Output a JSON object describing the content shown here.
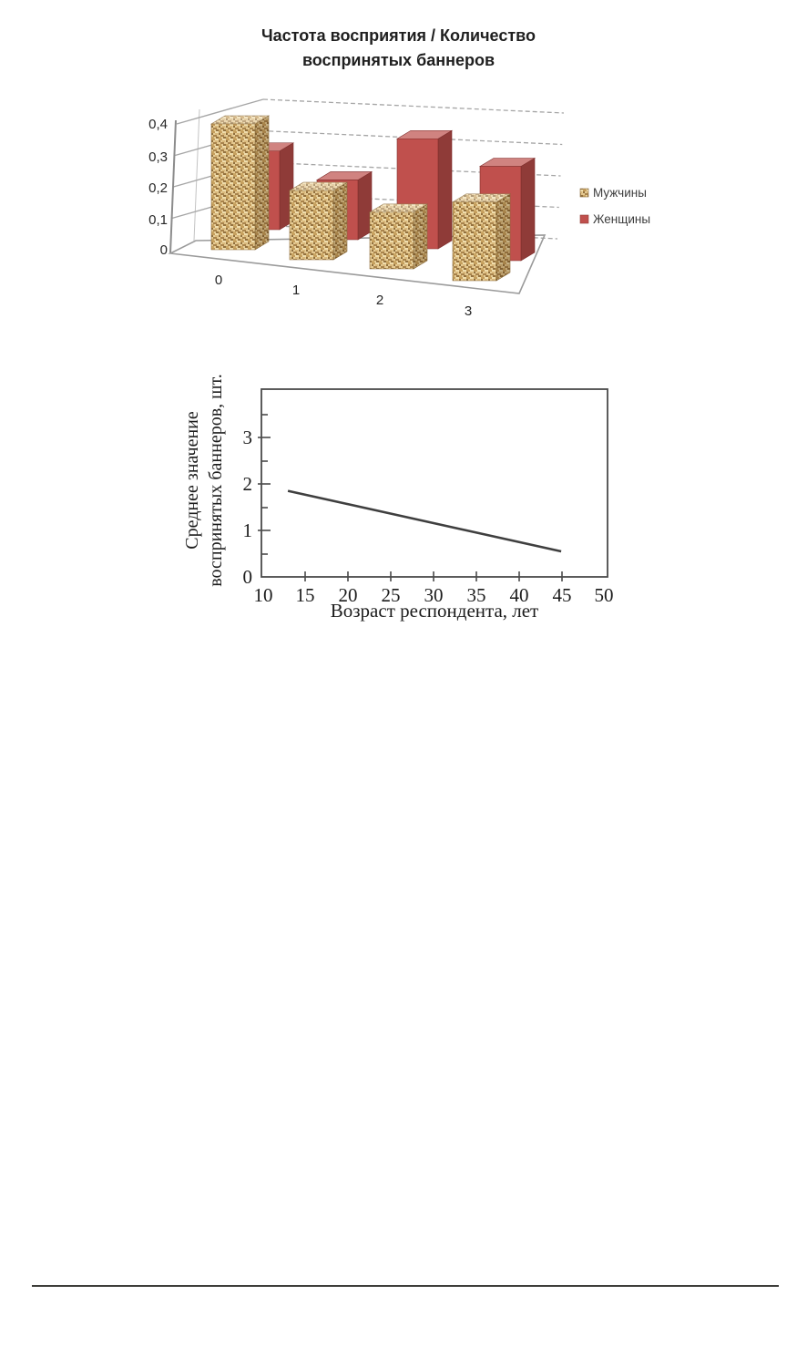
{
  "figure1": {
    "title_lines": [
      "Частота восприятия / Количество",
      "воспринятых баннеров"
    ],
    "legend": [
      "Мужчины",
      "Женщины"
    ]
  },
  "chart_data": [
    {
      "type": "bar",
      "subtype": "3d-clustered",
      "title": "Частота восприятия / Количество воспринятых баннеров",
      "title_lines": [
        "Частота восприятия / Количество",
        "воспринятых баннеров"
      ],
      "categories": [
        "0",
        "1",
        "2",
        "3"
      ],
      "series": [
        {
          "name": "Мужчины",
          "values": [
            0.4,
            0.22,
            0.18,
            0.25
          ],
          "style": "burlap-texture",
          "color": "#d9b87b"
        },
        {
          "name": "Женщины",
          "values": [
            0.25,
            0.19,
            0.35,
            0.3
          ],
          "style": "solid",
          "color": "#c0504d"
        }
      ],
      "y_ticks": [
        0,
        0.1,
        0.2,
        0.3,
        0.4
      ],
      "y_tick_labels": [
        "0",
        "0,1",
        "0,2",
        "0,3",
        "0,4"
      ],
      "ylim": [
        0,
        0.4
      ],
      "grid": "dashed-horizontal",
      "legend_position": "right"
    },
    {
      "type": "line",
      "x": [
        13,
        45
      ],
      "y": [
        1.85,
        0.55
      ],
      "xlabel": "Возраст респондента, лет",
      "ylabel": "Среднее значение воспринятых баннеров, шт.",
      "ylabel_lines": [
        "Среднее значение",
        "воспринятых баннеров, шт."
      ],
      "x_ticks": [
        10,
        15,
        20,
        25,
        30,
        35,
        40,
        45,
        50
      ],
      "x_tick_labels": [
        "10",
        "15",
        "20",
        "25",
        "30",
        "35",
        "40",
        "45",
        "50"
      ],
      "y_ticks": [
        0,
        1,
        2,
        3
      ],
      "y_tick_labels": [
        "0",
        "1",
        "2",
        "3"
      ],
      "xlim": [
        10,
        50
      ],
      "ylim": [
        0,
        4
      ],
      "grid": "off",
      "line_color": "#3f3f3f"
    }
  ],
  "colors": {
    "bar_red": "#c0504d",
    "bar_tan_base": "#d9b87b",
    "gridline": "#a6a6a6",
    "trend_line": "#3f3f3f",
    "divider": "#3e3e3a"
  }
}
